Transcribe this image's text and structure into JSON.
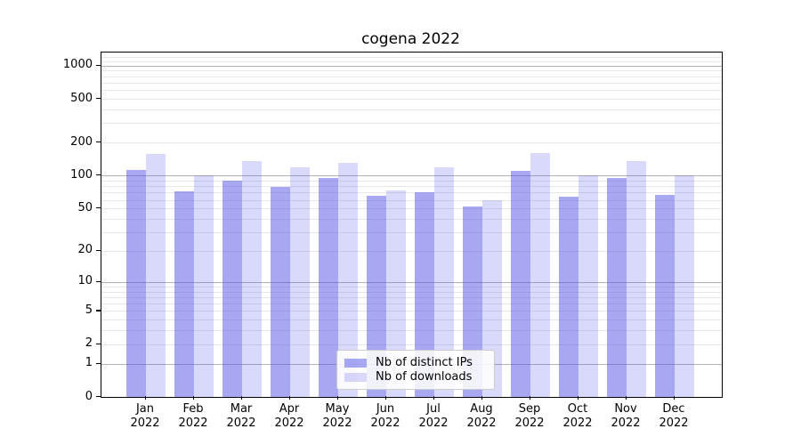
{
  "title": "cogena 2022",
  "chart_data": {
    "type": "bar",
    "title": "cogena 2022",
    "xlabel": "",
    "ylabel": "",
    "y_scale": "log1p",
    "ylim": [
      0,
      1266
    ],
    "y_ticks": [
      0,
      1,
      2,
      5,
      10,
      20,
      50,
      100,
      200,
      500,
      1000
    ],
    "grid": "major-and-minor, horizontal only",
    "legend_position": "inside bottom-center",
    "categories": [
      "Jan",
      "Feb",
      "Mar",
      "Apr",
      "May",
      "Jun",
      "Jul",
      "Aug",
      "Sep",
      "Oct",
      "Nov",
      "Dec"
    ],
    "year_label": "2022",
    "series": [
      {
        "name": "Nb of distinct IPs",
        "color": "rgba(80,80,230,0.5)",
        "values": [
          113,
          72,
          90,
          79,
          95,
          65,
          71,
          52,
          110,
          64,
          95,
          67
        ]
      },
      {
        "name": "Nb of downloads",
        "color": "rgba(80,80,230,0.22)",
        "values": [
          158,
          101,
          135,
          119,
          130,
          73,
          120,
          60,
          161,
          100,
          136,
          101
        ]
      }
    ]
  },
  "colors": {
    "major_grid": "#b3b3b3",
    "minor_grid": "#e7e7e7",
    "spine": "#000000",
    "text": "#000000",
    "legend_border": "#cccccc"
  }
}
